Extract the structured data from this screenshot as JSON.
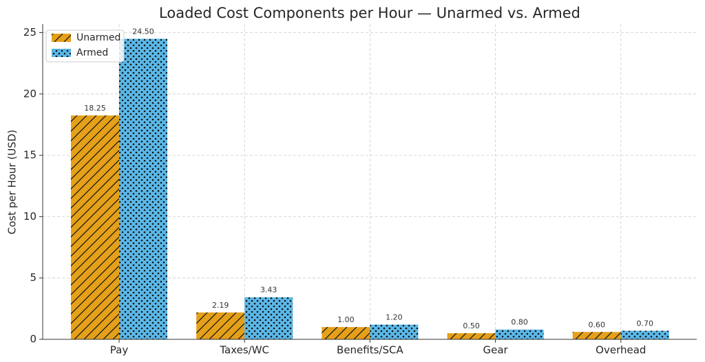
{
  "chart_data": {
    "type": "bar",
    "title": "Loaded Cost Components per Hour — Unarmed vs. Armed",
    "ylabel": "Cost per Hour (USD)",
    "categories": [
      "Pay",
      "Taxes/WC",
      "Benefits/SCA",
      "Gear",
      "Overhead"
    ],
    "series": [
      {
        "name": "Unarmed",
        "color": "#e5a019",
        "hatch": "diagonal",
        "values": [
          18.25,
          2.19,
          1.0,
          0.5,
          0.6
        ],
        "value_labels": [
          "18.25",
          "2.19",
          "1.00",
          "0.50",
          "0.60"
        ]
      },
      {
        "name": "Armed",
        "color": "#5bb8e8",
        "hatch": "dots",
        "values": [
          24.5,
          3.43,
          1.2,
          0.8,
          0.7
        ],
        "value_labels": [
          "24.50",
          "3.43",
          "1.20",
          "0.80",
          "0.70"
        ]
      }
    ],
    "ylim": [
      0,
      25.7
    ],
    "yticks": [
      0,
      5,
      10,
      15,
      20,
      25
    ],
    "grid": true,
    "legend": "upper-left"
  }
}
